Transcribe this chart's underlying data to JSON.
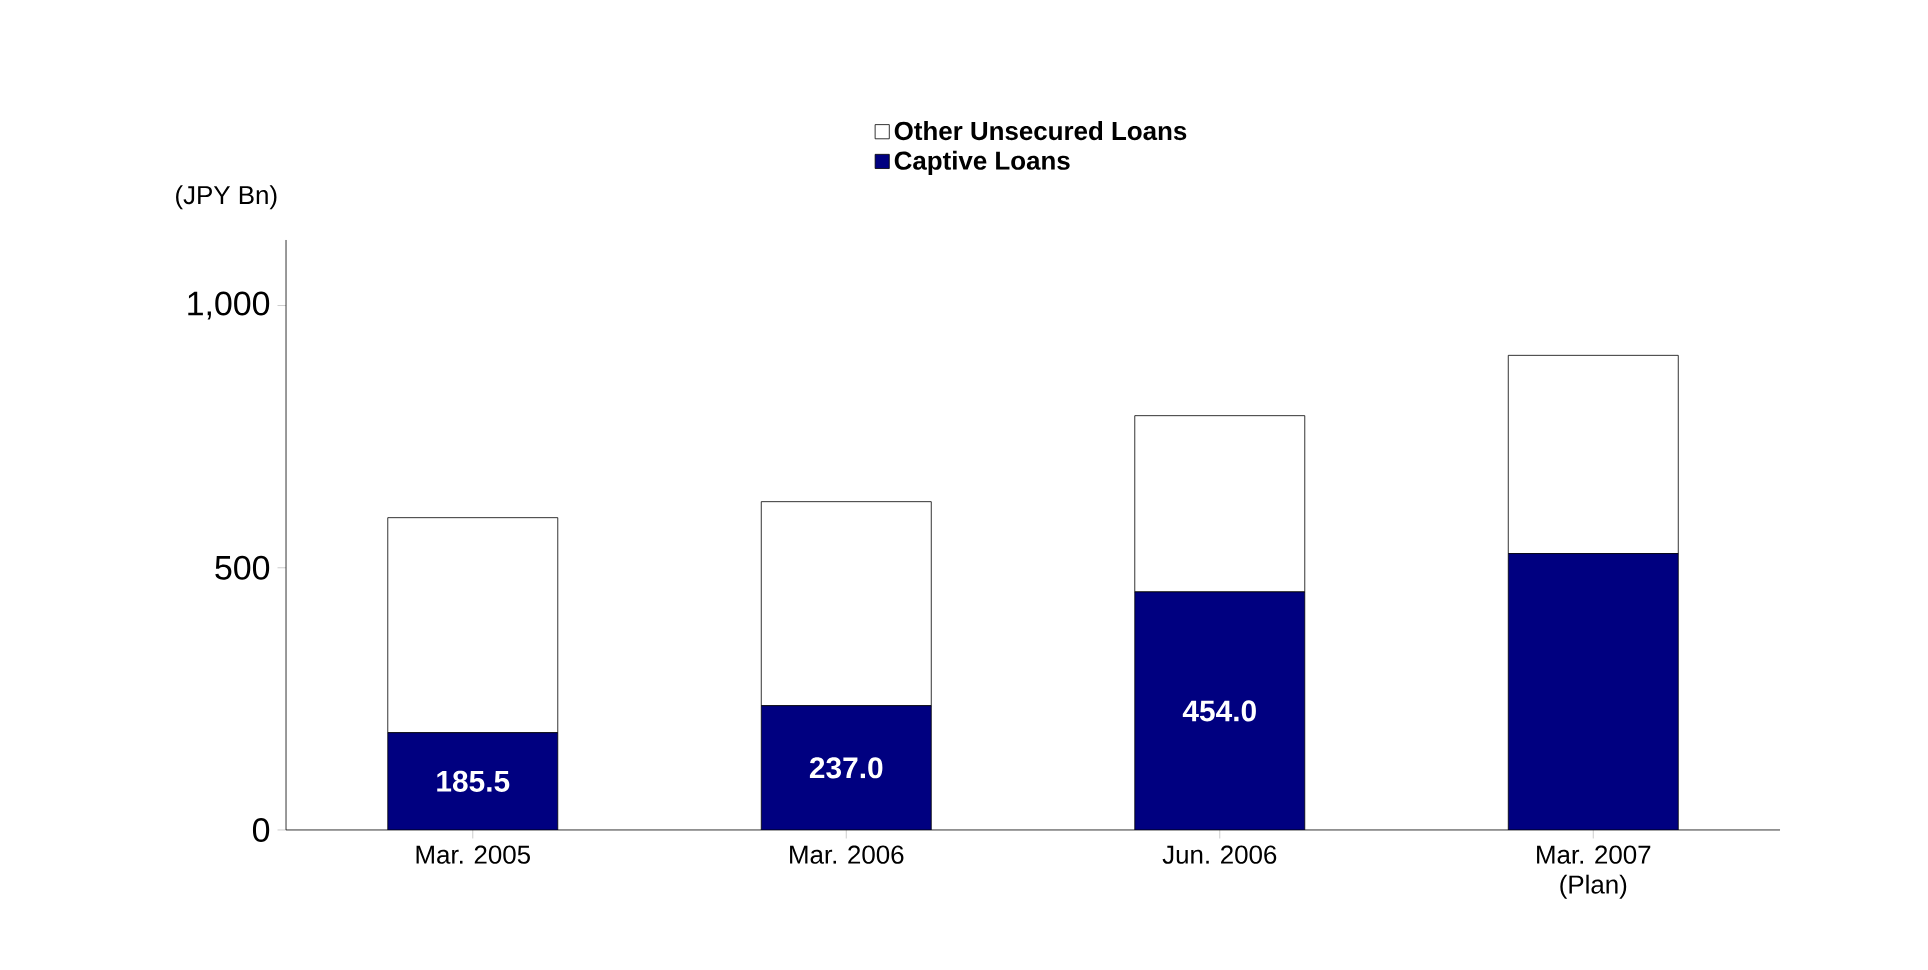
{
  "chart_data": {
    "type": "bar",
    "stacked": true,
    "ylabel": "(JPY Bn)",
    "categories": [
      "Mar. 2005",
      "Mar. 2006",
      "Jun. 2006",
      "Mar. 2007 (Plan)"
    ],
    "series": [
      {
        "name": "Captive Loans",
        "color": "#000080",
        "values": [
          185.5,
          237.0,
          454.0,
          527
        ],
        "value_labels": [
          "185.5",
          "237.0",
          "454.0",
          null
        ]
      },
      {
        "name": "Other Unsecured Loans",
        "color": "#ffffff",
        "values": [
          410,
          389,
          336,
          378
        ]
      }
    ],
    "ylim": [
      0,
      1125
    ],
    "yticks": [
      0,
      {
        "value": 500,
        "label": "500"
      },
      {
        "value": 1000,
        "label": "1,000"
      }
    ],
    "legend": "top",
    "grid": false
  }
}
